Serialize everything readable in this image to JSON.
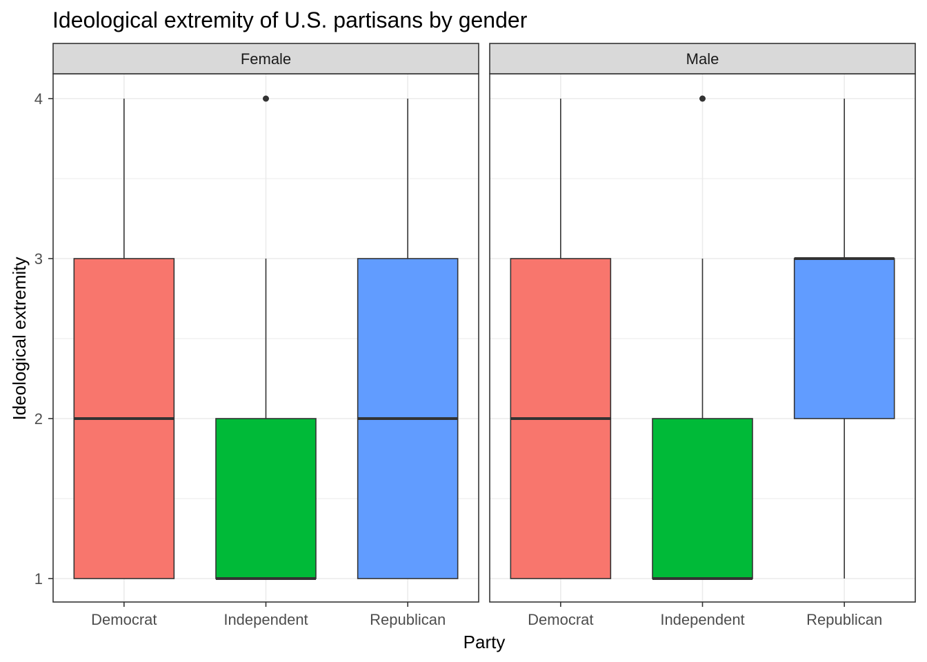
{
  "chart_data": {
    "type": "boxplot",
    "title": "Ideological extremity of U.S. partisans by gender",
    "xlabel": "Party",
    "ylabel": "Ideological extremity",
    "categories": [
      "Democrat",
      "Independent",
      "Republican"
    ],
    "y_ticks": [
      "1",
      "2",
      "3",
      "4"
    ],
    "ylim": [
      0.85,
      4.15
    ],
    "grid": true,
    "legend": "none",
    "colors": {
      "Democrat": "#F8766D",
      "Independent": "#00BA38",
      "Republican": "#619CFF",
      "strip": "#d9d9d9",
      "grid": "#ebebeb"
    },
    "panels": [
      {
        "label": "Female",
        "boxes": [
          {
            "category": "Democrat",
            "min": 1,
            "q1": 1,
            "median": 2,
            "q3": 3,
            "max": 4,
            "outliers": []
          },
          {
            "category": "Independent",
            "min": 1,
            "q1": 1,
            "median": 1,
            "q3": 2,
            "max": 3,
            "outliers": [
              4
            ]
          },
          {
            "category": "Republican",
            "min": 1,
            "q1": 1,
            "median": 2,
            "q3": 3,
            "max": 4,
            "outliers": []
          }
        ]
      },
      {
        "label": "Male",
        "boxes": [
          {
            "category": "Democrat",
            "min": 1,
            "q1": 1,
            "median": 2,
            "q3": 3,
            "max": 4,
            "outliers": []
          },
          {
            "category": "Independent",
            "min": 1,
            "q1": 1,
            "median": 1,
            "q3": 2,
            "max": 3,
            "outliers": [
              4
            ]
          },
          {
            "category": "Republican",
            "min": 1,
            "q1": 2,
            "median": 3,
            "q3": 3,
            "max": 4,
            "outliers": []
          }
        ]
      }
    ]
  }
}
